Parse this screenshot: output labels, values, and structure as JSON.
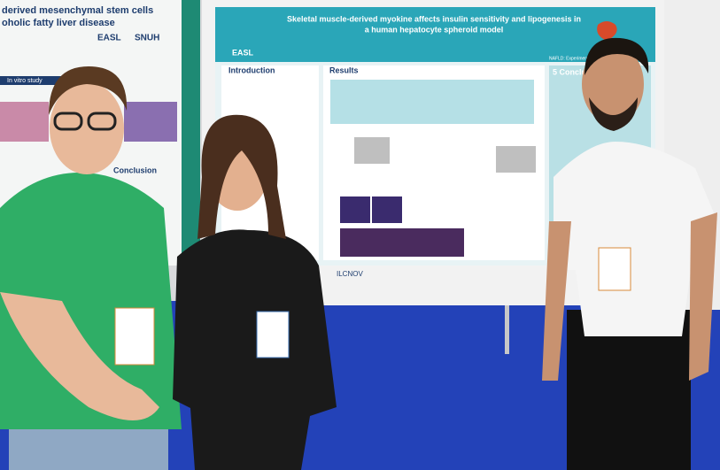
{
  "poster_left": {
    "title_lines": [
      "derived mesenchymal stem cells",
      "oholic fatty liver disease"
    ],
    "logos": [
      "EASL",
      "SNUH"
    ],
    "sections": [
      "In vitro study",
      "Conclusion"
    ]
  },
  "poster_center": {
    "title_lines": [
      "Skeletal muscle-derived myokine affects insulin sensitivity and lipogenesis in",
      "a human hepatocyte spheroid model"
    ],
    "logo": "EASL",
    "topic": "NAFLD: Experiment",
    "sections": [
      "Introduction",
      "Results",
      "5 Conclu"
    ],
    "footer": "ILCNOV"
  }
}
